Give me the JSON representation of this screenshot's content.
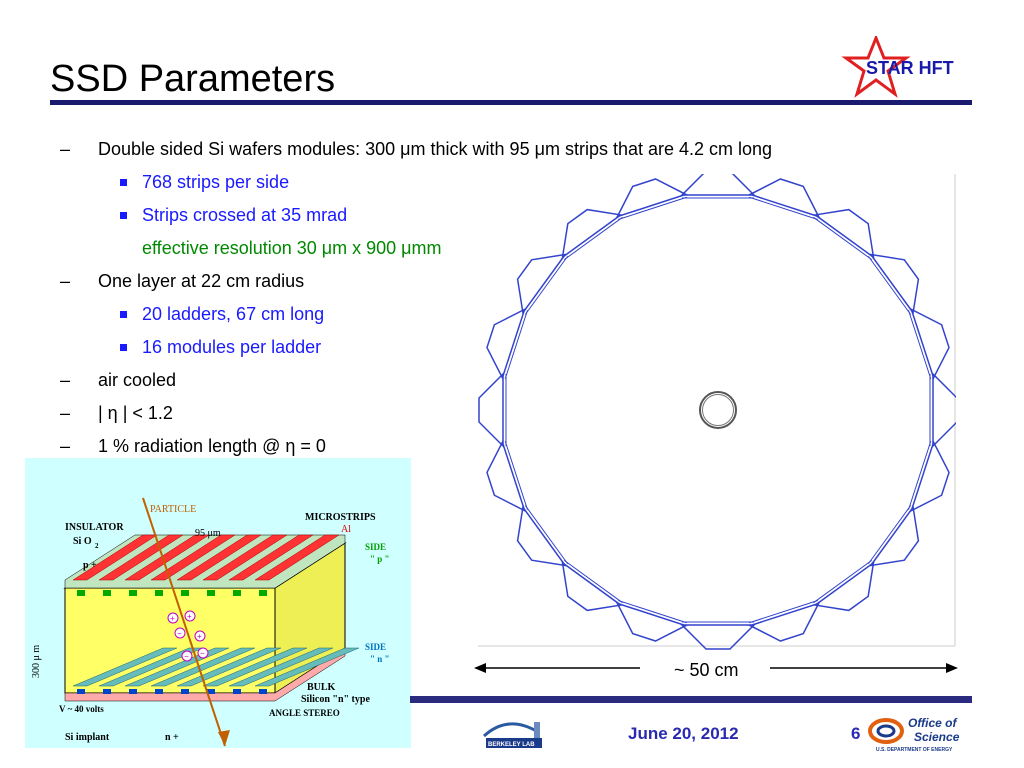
{
  "slide": {
    "title": "SSD Parameters",
    "date": "June 20, 2012",
    "page": "6"
  },
  "logo": {
    "text": "STAR HFT"
  },
  "bullets": {
    "b1": "Double sided Si wafers modules: 300 μm thick with 95 μm strips that are 4.2 cm long",
    "b1a": "768 strips per side",
    "b1b": "Strips crossed at 35 mrad",
    "b1c": "effective resolution  30 μm x 900 μmm",
    "b2": "One layer at 22 cm radius",
    "b2a": "20 ladders, 67 cm long",
    "b2b": "16 modules per ladder",
    "b3": "air cooled",
    "b4": "| η | < 1.2",
    "b5": "1 % radiation length @ η = 0"
  },
  "scale_label": "~ 50 cm",
  "sensor": {
    "particle": "PARTICLE",
    "microstrips": "MICROSTRIPS",
    "al": "Al",
    "insulator": "INSULATOR",
    "sio2": "Si O",
    "sio2_sub": "2",
    "pitch": "95  μm",
    "side_p": "SIDE",
    "side_p_val": "\" p \"",
    "p_plus": "p +",
    "thickness": "300 μ m",
    "side_n": "SIDE",
    "side_n_val": "\" n \"",
    "bulk": "BULK",
    "bulk_desc": "Silicon  \"n\" type",
    "voltage": "V ~ 40 volts",
    "angle": "ANGLE  STEREO",
    "implant": "Si implant",
    "n_plus": "n +"
  },
  "footer": {
    "berkeley": "BERKELEY LAB",
    "doe_line1": "Office of",
    "doe_line2": "Science",
    "doe_line3": "U.S. DEPARTMENT OF ENERGY"
  },
  "colors": {
    "title_rule": "#1a1a6e",
    "sub_bullet": "#1a1aff",
    "resolution": "#008800",
    "ladder": "#3344cc",
    "date": "#2a2ab0"
  }
}
